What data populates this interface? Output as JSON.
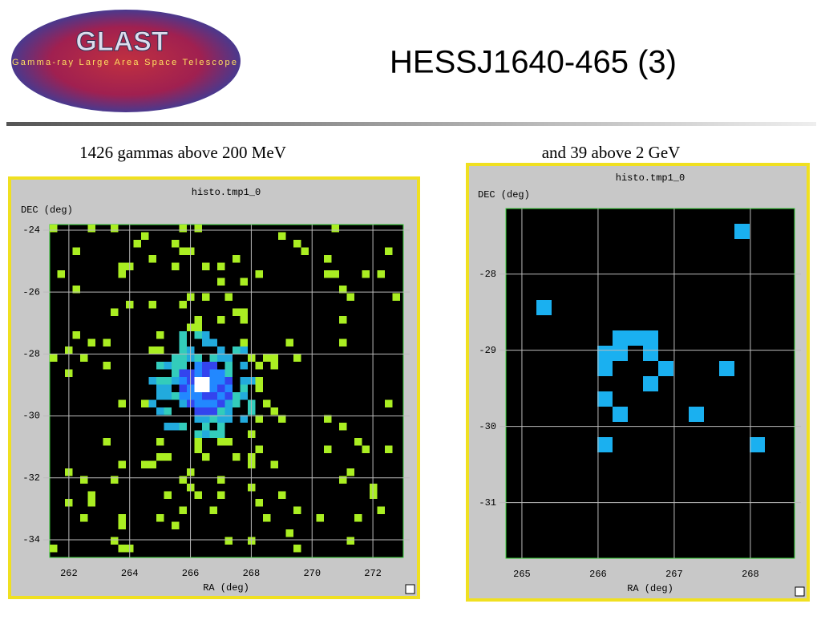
{
  "header": {
    "title": "HESSJ1640-465 (3)",
    "logo_text": "GLAST",
    "logo_subtitle": "Gamma-ray Large Area Space Telescope"
  },
  "panels": [
    {
      "caption": "1426 gammas above 200 MeV",
      "plot_title": "histo.tmp1_0",
      "y_label": "DEC (deg)",
      "x_label": "RA (deg)",
      "xlim": [
        261.37,
        273.0
      ],
      "ylim": [
        -23.82,
        -34.57
      ],
      "xticks": [
        262,
        264,
        266,
        268,
        270,
        272
      ],
      "yticks": [
        -24,
        -26,
        -28,
        -30,
        -32,
        -34
      ]
    },
    {
      "caption": "and 39 above 2 GeV",
      "plot_title": "histo.tmp1_0",
      "y_label": "DEC (deg)",
      "x_label": "RA (deg)",
      "xlim": [
        264.79,
        268.58
      ],
      "ylim": [
        -27.14,
        -31.73
      ],
      "xticks": [
        265,
        266,
        267,
        268
      ],
      "yticks": [
        -28,
        -29,
        -30,
        -31
      ]
    }
  ]
}
